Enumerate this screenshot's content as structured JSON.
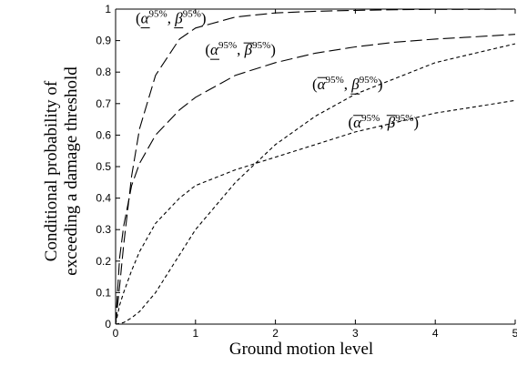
{
  "chart_data": {
    "type": "line",
    "xlabel": "Ground motion level",
    "ylabel_line1": "Conditional probability of",
    "ylabel_line2": "exceeding a damage threshold",
    "xlim": [
      0,
      5
    ],
    "ylim": [
      0,
      1
    ],
    "xticks": [
      "0",
      "1",
      "2",
      "3",
      "4",
      "5"
    ],
    "yticks": [
      "0",
      "0.1",
      "0.2",
      "0.3",
      "0.4",
      "0.5",
      "0.6",
      "0.7",
      "0.8",
      "0.9",
      "1"
    ],
    "grid": false,
    "series": [
      {
        "name": "(α̲95%, β̲95%)",
        "dash": "long",
        "x": [
          0,
          0.05,
          0.1,
          0.2,
          0.3,
          0.5,
          0.8,
          1.0,
          1.5,
          2.0,
          2.5,
          3.0,
          3.5,
          4.0,
          4.5,
          5.0
        ],
        "y": [
          0,
          0.12,
          0.25,
          0.47,
          0.62,
          0.79,
          0.905,
          0.94,
          0.975,
          0.988,
          0.993,
          0.996,
          0.998,
          0.999,
          0.999,
          1.0
        ]
      },
      {
        "name": "(α̲95%, β̄95%)",
        "dash": "long",
        "x": [
          0,
          0.05,
          0.1,
          0.2,
          0.3,
          0.5,
          0.8,
          1.0,
          1.5,
          2.0,
          2.5,
          3.0,
          3.5,
          4.0,
          4.5,
          5.0
        ],
        "y": [
          0,
          0.21,
          0.31,
          0.44,
          0.51,
          0.6,
          0.68,
          0.72,
          0.79,
          0.83,
          0.86,
          0.88,
          0.895,
          0.905,
          0.912,
          0.92
        ]
      },
      {
        "name": "(ᾱ95%, β̲95%)",
        "dash": "short",
        "x": [
          0,
          0.1,
          0.2,
          0.3,
          0.5,
          0.8,
          1.0,
          1.5,
          2.0,
          2.5,
          3.0,
          3.5,
          4.0,
          4.5,
          5.0
        ],
        "y": [
          0,
          0.005,
          0.02,
          0.04,
          0.1,
          0.22,
          0.3,
          0.45,
          0.57,
          0.66,
          0.73,
          0.78,
          0.83,
          0.86,
          0.89
        ]
      },
      {
        "name": "(ᾱ95%, β̄95%)",
        "dash": "short",
        "x": [
          0,
          0.05,
          0.1,
          0.2,
          0.3,
          0.5,
          0.8,
          1.0,
          1.5,
          2.0,
          2.5,
          3.0,
          3.5,
          4.0,
          4.5,
          5.0
        ],
        "y": [
          0,
          0.06,
          0.1,
          0.17,
          0.23,
          0.32,
          0.4,
          0.44,
          0.49,
          0.53,
          0.57,
          0.61,
          0.64,
          0.67,
          0.69,
          0.71
        ]
      }
    ],
    "annotations": [
      {
        "alpha_mark": "under",
        "beta_mark": "under",
        "x": 0.25,
        "y": 0.955,
        "alpha": "α",
        "beta": "β",
        "sup": "95%"
      },
      {
        "alpha_mark": "under",
        "beta_mark": "bar",
        "x": 1.12,
        "y": 0.855,
        "alpha": "α",
        "beta": "β",
        "sup": "95%"
      },
      {
        "alpha_mark": "bar",
        "beta_mark": "under",
        "x": 2.46,
        "y": 0.745,
        "alpha": "α",
        "beta": "β",
        "sup": "95%"
      },
      {
        "alpha_mark": "bar",
        "beta_mark": "bar",
        "x": 2.91,
        "y": 0.625,
        "alpha": "α",
        "beta": "β",
        "sup": "95%"
      }
    ]
  }
}
